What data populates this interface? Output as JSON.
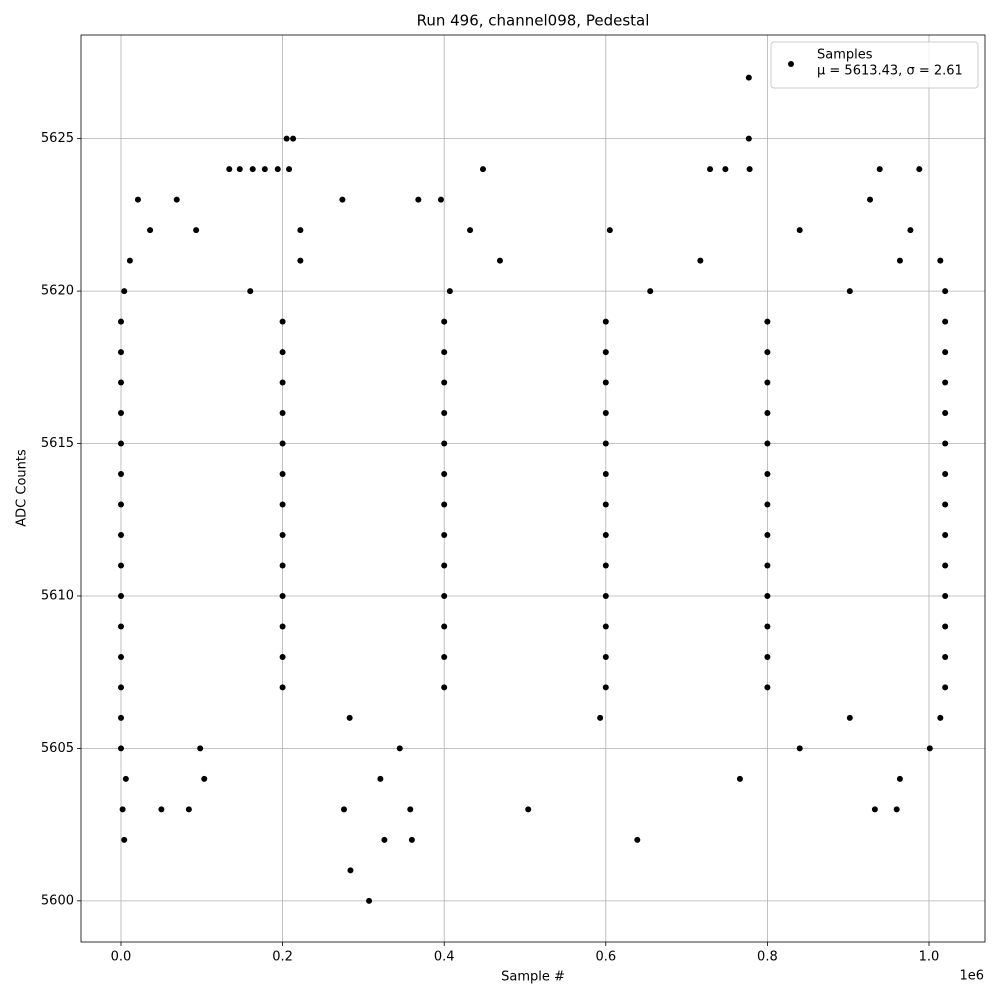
{
  "chart_data": {
    "type": "scatter",
    "title": "Run 496, channel098, Pedestal",
    "x_label": "Sample #",
    "y_label": "ADC Counts",
    "x_offset_label": "1e6",
    "xlim": [
      -49500,
      1069300
    ],
    "ylim": [
      5598.65,
      5628.4
    ],
    "xticks": [
      {
        "value": 0,
        "label": "0.0"
      },
      {
        "value": 200000,
        "label": "0.2"
      },
      {
        "value": 400000,
        "label": "0.4"
      },
      {
        "value": 600000,
        "label": "0.6"
      },
      {
        "value": 800000,
        "label": "0.8"
      },
      {
        "value": 1000000,
        "label": "1.0"
      }
    ],
    "yticks": [
      5600,
      5605,
      5610,
      5615,
      5620,
      5625
    ],
    "grid": true,
    "legend": "upper right",
    "series": [
      {
        "name": "Samples",
        "stats_label": "μ = 5613.43, σ = 2.61",
        "color": "#000000",
        "x": [
          777000,
          205000,
          213000,
          777000,
          134000,
          147000,
          163000,
          178000,
          194000,
          208000,
          448000,
          729000,
          748000,
          778000,
          939000,
          988000,
          21000,
          69000,
          274000,
          368000,
          396000,
          927000,
          36000,
          93000,
          222000,
          432000,
          605000,
          840000,
          977000,
          11000,
          222000,
          469000,
          717000,
          964000,
          1014000,
          4000,
          160000,
          407000,
          655000,
          902000,
          1020000,
          0,
          200000,
          400000,
          600000,
          800000,
          1020000,
          0,
          200000,
          400000,
          600000,
          800000,
          1020000,
          0,
          200000,
          400000,
          600000,
          800000,
          1020000,
          0,
          200000,
          400000,
          600000,
          800000,
          1020000,
          0,
          200000,
          400000,
          600000,
          800000,
          1020000,
          0,
          200000,
          400000,
          600000,
          800000,
          1020000,
          0,
          200000,
          400000,
          600000,
          800000,
          1020000,
          0,
          200000,
          400000,
          600000,
          800000,
          1020000,
          0,
          200000,
          400000,
          600000,
          800000,
          1020000,
          0,
          200000,
          400000,
          600000,
          800000,
          1020000,
          0,
          200000,
          400000,
          600000,
          800000,
          1020000,
          0,
          200000,
          400000,
          600000,
          800000,
          1020000,
          0,
          200000,
          400000,
          600000,
          800000,
          1020000,
          0,
          283000,
          593000,
          902000,
          1014000,
          0,
          98000,
          345000,
          840000,
          1001000,
          6000,
          103000,
          321000,
          766000,
          964000,
          2000,
          50000,
          84000,
          276000,
          358000,
          504000,
          933000,
          960000,
          4000,
          326000,
          360000,
          639000,
          284000,
          307000
        ],
        "values": [
          5627,
          5625,
          5625,
          5625,
          5624,
          5624,
          5624,
          5624,
          5624,
          5624,
          5624,
          5624,
          5624,
          5624,
          5624,
          5624,
          5623,
          5623,
          5623,
          5623,
          5623,
          5623,
          5622,
          5622,
          5622,
          5622,
          5622,
          5622,
          5622,
          5621,
          5621,
          5621,
          5621,
          5621,
          5621,
          5620,
          5620,
          5620,
          5620,
          5620,
          5620,
          5619,
          5619,
          5619,
          5619,
          5619,
          5619,
          5618,
          5618,
          5618,
          5618,
          5618,
          5618,
          5617,
          5617,
          5617,
          5617,
          5617,
          5617,
          5616,
          5616,
          5616,
          5616,
          5616,
          5616,
          5615,
          5615,
          5615,
          5615,
          5615,
          5615,
          5614,
          5614,
          5614,
          5614,
          5614,
          5614,
          5613,
          5613,
          5613,
          5613,
          5613,
          5613,
          5612,
          5612,
          5612,
          5612,
          5612,
          5612,
          5611,
          5611,
          5611,
          5611,
          5611,
          5611,
          5610,
          5610,
          5610,
          5610,
          5610,
          5610,
          5609,
          5609,
          5609,
          5609,
          5609,
          5609,
          5608,
          5608,
          5608,
          5608,
          5608,
          5608,
          5607,
          5607,
          5607,
          5607,
          5607,
          5607,
          5606,
          5606,
          5606,
          5606,
          5606,
          5605,
          5605,
          5605,
          5605,
          5605,
          5604,
          5604,
          5604,
          5604,
          5604,
          5603,
          5603,
          5603,
          5603,
          5603,
          5603,
          5603,
          5603,
          5602,
          5602,
          5602,
          5602,
          5601,
          5600
        ]
      }
    ]
  }
}
